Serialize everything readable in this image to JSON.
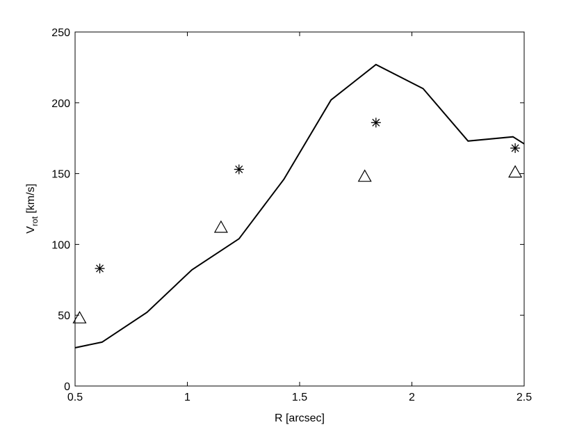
{
  "chart_data": {
    "type": "line",
    "title": "",
    "xlabel": "R [arcsec]",
    "ylabel_main": "V",
    "ylabel_sub": "rot",
    "ylabel_unit": " [km/s]",
    "xlim": [
      0.5,
      2.5
    ],
    "ylim": [
      0,
      250
    ],
    "xticks": [
      0.5,
      1,
      1.5,
      2,
      2.5
    ],
    "xtick_labels": [
      "0.5",
      "1",
      "1.5",
      "2",
      "2.5"
    ],
    "yticks": [
      0,
      50,
      100,
      150,
      200,
      250
    ],
    "ytick_labels": [
      "0",
      "50",
      "100",
      "150",
      "200",
      "250"
    ],
    "grid": false,
    "legend": "none",
    "series": [
      {
        "style": "solid-line",
        "color": "#000000",
        "x": [
          0.5,
          0.62,
          0.82,
          1.02,
          1.23,
          1.43,
          1.64,
          1.84,
          2.05,
          2.25,
          2.45,
          2.5
        ],
        "y": [
          27,
          31,
          52,
          82,
          104,
          146,
          202,
          227,
          210,
          173,
          176,
          171
        ]
      },
      {
        "style": "asterisk-markers",
        "color": "#000000",
        "x": [
          0.61,
          1.23,
          1.84,
          2.46
        ],
        "y": [
          83,
          153,
          186,
          168
        ]
      },
      {
        "style": "triangle-markers",
        "color": "#000000",
        "x": [
          0.52,
          1.15,
          1.79,
          2.46
        ],
        "y": [
          48,
          112,
          148,
          151
        ]
      }
    ]
  }
}
